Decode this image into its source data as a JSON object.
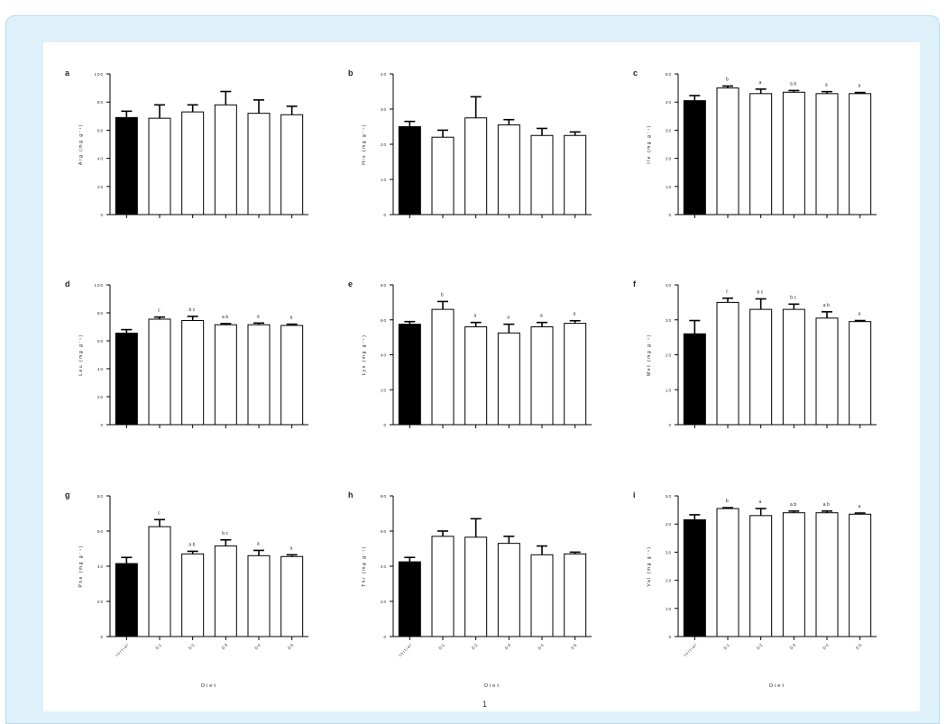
{
  "colors": {
    "frame": "#def1fa",
    "initial_bar": "#000000",
    "diet_bar": "#ffffff",
    "axis": "#000000"
  },
  "chart_data": [
    {
      "panel": "a",
      "type": "bar",
      "ylabel": "Arg (mg g⁻¹)",
      "categories": [
        "Initial",
        "D1",
        "D2",
        "D3",
        "D4",
        "D5"
      ],
      "values": [
        69,
        68.5,
        73,
        78,
        72,
        71
      ],
      "errors": [
        4.5,
        9.5,
        5,
        9.5,
        9.5,
        6
      ],
      "letters": [
        "",
        "",
        "",
        "",
        "",
        ""
      ],
      "ylim": [
        0,
        100
      ],
      "yticks": [
        0,
        20,
        40,
        60,
        80,
        100
      ]
    },
    {
      "panel": "b",
      "type": "bar",
      "ylabel": "His (mg g⁻¹)",
      "categories": [
        "Initial",
        "D1",
        "D2",
        "D3",
        "D4",
        "D5"
      ],
      "values": [
        25,
        22,
        27.5,
        25.5,
        22.5,
        22.5
      ],
      "errors": [
        1.5,
        2,
        6,
        1.5,
        2,
        1
      ],
      "letters": [
        "",
        "",
        "",
        "",
        "",
        ""
      ],
      "ylim": [
        0,
        40
      ],
      "yticks": [
        0,
        10,
        20,
        30,
        40
      ]
    },
    {
      "panel": "c",
      "type": "bar",
      "ylabel": "Ile (mg g⁻¹)",
      "categories": [
        "Initial",
        "D1",
        "D2",
        "D3",
        "D4",
        "D5"
      ],
      "values": [
        40.5,
        45,
        43,
        43.5,
        43,
        43
      ],
      "errors": [
        1.8,
        0.7,
        1.6,
        0.6,
        0.7,
        0.4
      ],
      "letters": [
        "",
        "b",
        "a",
        "ab",
        "a",
        "a"
      ],
      "ylim": [
        0,
        50
      ],
      "yticks": [
        0,
        10,
        20,
        30,
        40,
        50
      ]
    },
    {
      "panel": "d",
      "type": "bar",
      "ylabel": "Leu (mg g⁻¹)",
      "categories": [
        "Initial",
        "D1",
        "D2",
        "D3",
        "D4",
        "D5"
      ],
      "values": [
        65.5,
        75.5,
        74.5,
        71.5,
        71.5,
        71
      ],
      "errors": [
        2.5,
        1.5,
        3,
        0.8,
        1.2,
        0.9
      ],
      "letters": [
        "",
        "c",
        "bc",
        "ab",
        "a",
        "a"
      ],
      "ylim": [
        0,
        100
      ],
      "yticks": [
        0,
        20,
        40,
        60,
        80,
        100
      ]
    },
    {
      "panel": "e",
      "type": "bar",
      "ylabel": "Lys (mg g⁻¹)",
      "categories": [
        "Initial",
        "D1",
        "D2",
        "D3",
        "D4",
        "D5"
      ],
      "values": [
        57.5,
        66,
        56,
        52.5,
        56,
        58
      ],
      "errors": [
        1.5,
        4.5,
        2.5,
        5,
        2.5,
        1.5
      ],
      "letters": [
        "",
        "b",
        "a",
        "a",
        "a",
        "a"
      ],
      "ylim": [
        0,
        80
      ],
      "yticks": [
        0,
        20,
        40,
        60,
        80
      ]
    },
    {
      "panel": "f",
      "type": "bar",
      "ylabel": "Met (mg g⁻¹)",
      "categories": [
        "Initial",
        "D1",
        "D2",
        "D3",
        "D4",
        "D5"
      ],
      "values": [
        26,
        35,
        33,
        33,
        30.5,
        29.5
      ],
      "errors": [
        3.8,
        1.2,
        3,
        1.5,
        1.8,
        0.3
      ],
      "letters": [
        "",
        "c",
        "bc",
        "bc",
        "ab",
        "a"
      ],
      "ylim": [
        0,
        40
      ],
      "yticks": [
        0,
        10,
        20,
        30,
        40
      ]
    },
    {
      "panel": "g",
      "type": "bar",
      "ylabel": "Phe (mg g⁻¹)",
      "categories": [
        "Initial",
        "D1",
        "D2",
        "D3",
        "D4",
        "D5"
      ],
      "values": [
        41.5,
        62.5,
        47,
        51.5,
        46,
        45.5
      ],
      "errors": [
        3.5,
        4,
        1.5,
        3.5,
        3,
        1
      ],
      "letters": [
        "",
        "c",
        "ab",
        "bc",
        "a",
        "a"
      ],
      "ylim": [
        0,
        80
      ],
      "yticks": [
        0,
        20,
        40,
        60,
        80
      ]
    },
    {
      "panel": "h",
      "type": "bar",
      "ylabel": "Thr (mg g⁻¹)",
      "categories": [
        "Initial",
        "D1",
        "D2",
        "D3",
        "D4",
        "D5"
      ],
      "values": [
        42.5,
        57,
        56.5,
        53,
        46.5,
        47
      ],
      "errors": [
        2.5,
        3,
        10.5,
        4,
        5,
        1
      ],
      "letters": [
        "",
        "",
        "",
        "",
        "",
        ""
      ],
      "ylim": [
        0,
        80
      ],
      "yticks": [
        0,
        20,
        40,
        60,
        80
      ]
    },
    {
      "panel": "i",
      "type": "bar",
      "ylabel": "Val (mg g⁻¹)",
      "categories": [
        "Initial",
        "D1",
        "D2",
        "D3",
        "D4",
        "D5"
      ],
      "values": [
        41.5,
        45.5,
        43,
        44,
        44,
        43.5
      ],
      "errors": [
        1.8,
        0.3,
        2.5,
        0.6,
        0.6,
        0.4
      ],
      "letters": [
        "",
        "b",
        "a",
        "ab",
        "ab",
        "a"
      ],
      "ylim": [
        0,
        50
      ],
      "yticks": [
        0,
        10,
        20,
        30,
        40,
        50
      ]
    }
  ],
  "xlabel": "Diet",
  "footer_mark": "1"
}
